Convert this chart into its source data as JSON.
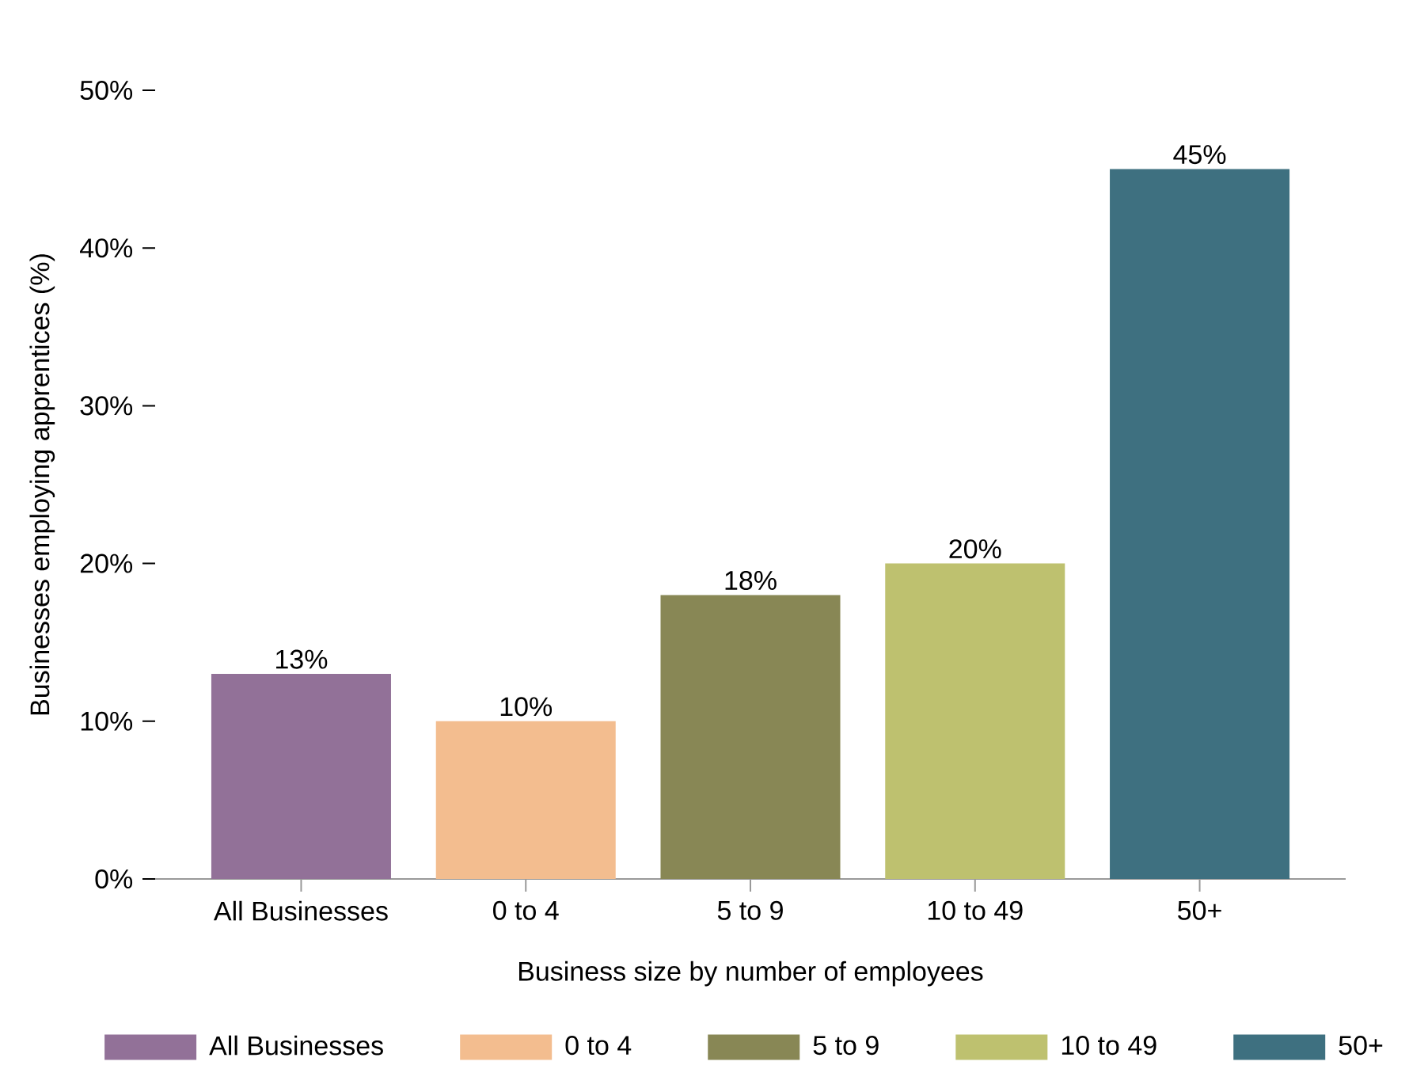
{
  "chart_data": {
    "type": "bar",
    "xlabel": "Business size by number of employees",
    "ylabel": "Businesses employing apprentices (%)",
    "categories": [
      "All Businesses",
      "0 to 4",
      "5 to 9",
      "10 to 49",
      "50+"
    ],
    "series": [
      {
        "name": "All Businesses",
        "color": "#927198",
        "values": [
          13,
          null,
          null,
          null,
          null
        ],
        "value_labels": [
          "13%",
          null,
          null,
          null,
          null
        ]
      },
      {
        "name": "0 to 4",
        "color": "#f3bd8f",
        "values": [
          null,
          10,
          null,
          null,
          null
        ],
        "value_labels": [
          null,
          "10%",
          null,
          null,
          null
        ]
      },
      {
        "name": "5 to 9",
        "color": "#888755",
        "values": [
          null,
          null,
          18,
          null,
          null
        ],
        "value_labels": [
          null,
          null,
          "18%",
          null,
          null
        ]
      },
      {
        "name": "10 to 49",
        "color": "#bec16f",
        "values": [
          null,
          null,
          null,
          20,
          null
        ],
        "value_labels": [
          null,
          null,
          null,
          "20%",
          null
        ]
      },
      {
        "name": "50+",
        "color": "#3e7080",
        "values": [
          null,
          null,
          null,
          null,
          45
        ],
        "value_labels": [
          null,
          null,
          null,
          null,
          "45%"
        ]
      }
    ],
    "ylim": [
      0,
      50
    ],
    "yticks": [
      {
        "value": 0,
        "label": "0%"
      },
      {
        "value": 10,
        "label": "10%"
      },
      {
        "value": 20,
        "label": "20%"
      },
      {
        "value": 30,
        "label": "30%"
      },
      {
        "value": 40,
        "label": "40%"
      },
      {
        "value": 50,
        "label": "50%"
      }
    ],
    "grid": false,
    "legend": "bottom"
  }
}
